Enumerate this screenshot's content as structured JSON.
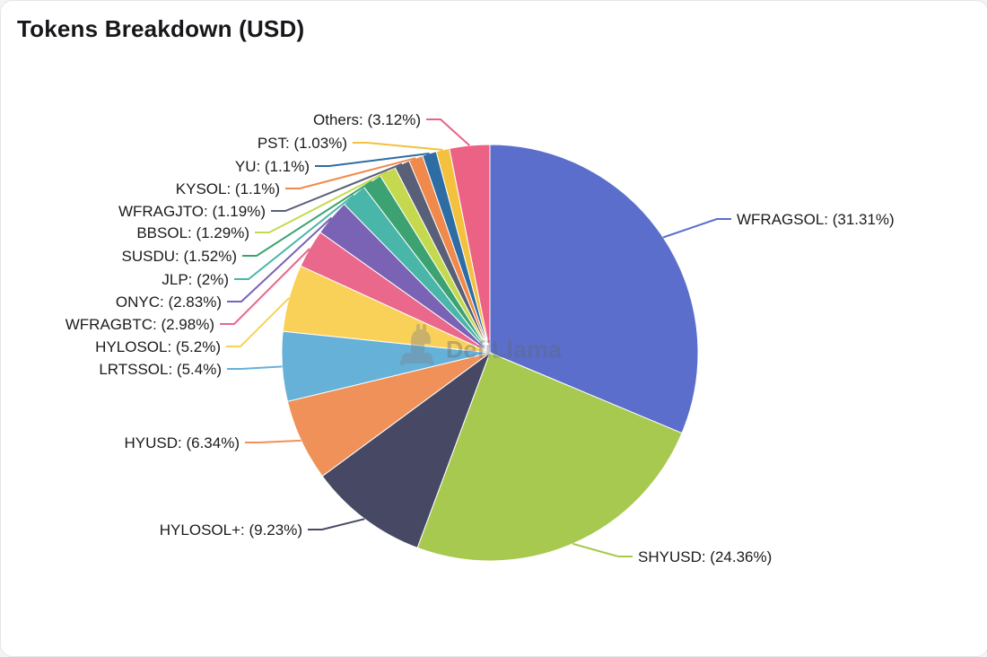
{
  "watermark": {
    "text": "DefiLlama"
  },
  "chart_data": {
    "type": "pie",
    "title": "Tokens Breakdown (USD)",
    "legend": "none",
    "label_format": "{name}: ({percent})",
    "start_angle_deg": 0,
    "direction": "clockwise",
    "slices": [
      {
        "name": "WFRAGSOL",
        "value": 31.31,
        "percent_label": "31.31%",
        "color": "#5b6ecb"
      },
      {
        "name": "SHYUSD",
        "value": 24.36,
        "percent_label": "24.36%",
        "color": "#a8c950"
      },
      {
        "name": "HYLOSOL+",
        "value": 9.23,
        "percent_label": "9.23%",
        "color": "#474964"
      },
      {
        "name": "HYUSD",
        "value": 6.34,
        "percent_label": "6.34%",
        "color": "#ef9159"
      },
      {
        "name": "LRTSSOL",
        "value": 5.4,
        "percent_label": "5.4%",
        "color": "#66b1d8"
      },
      {
        "name": "HYLOSOL",
        "value": 5.2,
        "percent_label": "5.2%",
        "color": "#fad158"
      },
      {
        "name": "WFRAGBTC",
        "value": 2.98,
        "percent_label": "2.98%",
        "color": "#e9688c"
      },
      {
        "name": "ONYC",
        "value": 2.83,
        "percent_label": "2.83%",
        "color": "#7a62b5"
      },
      {
        "name": "JLP",
        "value": 2,
        "percent_label": "2%",
        "color": "#49b6a9"
      },
      {
        "name": "SUSDU",
        "value": 1.52,
        "percent_label": "1.52%",
        "color": "#3da272"
      },
      {
        "name": "BBSOL",
        "value": 1.29,
        "percent_label": "1.29%",
        "color": "#c5d94f"
      },
      {
        "name": "WFRAGJTO",
        "value": 1.19,
        "percent_label": "1.19%",
        "color": "#5a5f78"
      },
      {
        "name": "KYSOL",
        "value": 1.1,
        "percent_label": "1.1%",
        "color": "#ef8a4c"
      },
      {
        "name": "YU",
        "value": 1.1,
        "percent_label": "1.1%",
        "color": "#2d6da3"
      },
      {
        "name": "PST",
        "value": 1.03,
        "percent_label": "1.03%",
        "color": "#f3c13d"
      },
      {
        "name": "Others",
        "value": 3.12,
        "percent_label": "3.12%",
        "color": "#ec6285"
      }
    ]
  }
}
